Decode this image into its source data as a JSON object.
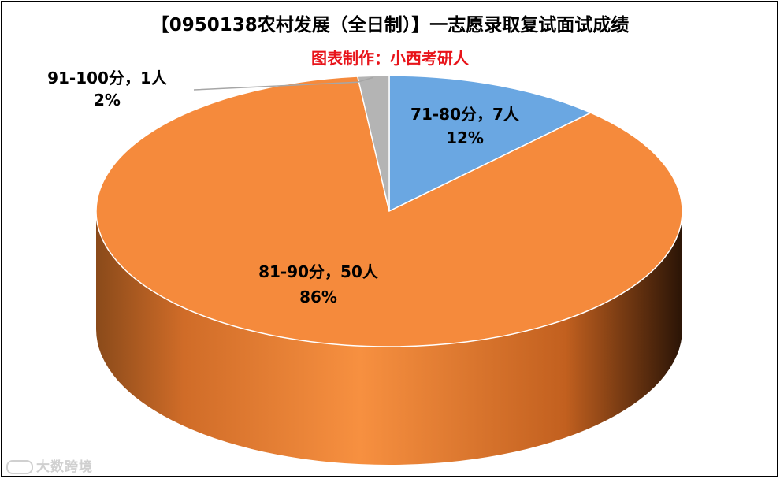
{
  "title": "【0950138农村发展（全日制）】一志愿录取复试面试成绩",
  "subtitle": "图表制作：小西考研人",
  "colors": {
    "subtitle": "#e8141a",
    "slice_7180": "#6aa7e2",
    "slice_8190": "#f58a3c",
    "slice_91100": "#b4b4b4"
  },
  "watermark": "大数跨境",
  "chart_data": {
    "type": "pie",
    "style": "3d",
    "slices": [
      {
        "category": "71-80分",
        "count": 7,
        "percent": 12,
        "color": "#6aa7e2",
        "label": "71-80分，7人",
        "pct_label": "12%"
      },
      {
        "category": "81-90分",
        "count": 50,
        "percent": 86,
        "color": "#f58a3c",
        "label": "81-90分，50人",
        "pct_label": "86%"
      },
      {
        "category": "91-100分",
        "count": 1,
        "percent": 2,
        "color": "#b4b4b4",
        "label": "91-100分，1人",
        "pct_label": "2%"
      }
    ]
  }
}
